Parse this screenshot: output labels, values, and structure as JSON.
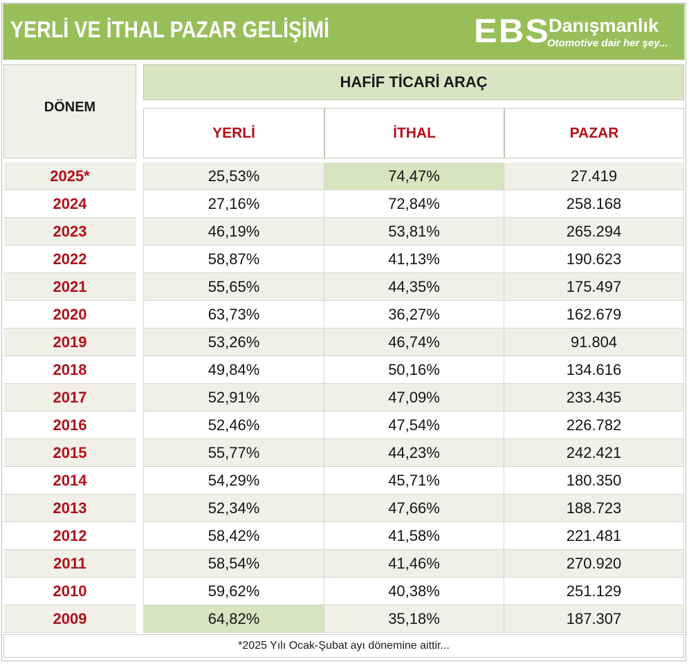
{
  "header": {
    "title": "YERLİ VE İTHAL PAZAR GELİŞİMİ",
    "logo_letters": "EBS",
    "logo_name": "Danışmanlık",
    "logo_tagline": "Otomotive dair her şey...",
    "brand_color": "#98be5a",
    "accent_color": "#b0101a"
  },
  "table": {
    "period_header": "DÖNEM",
    "group_header": "HAFİF TİCARİ ARAÇ",
    "columns": [
      "YERLİ",
      "İTHAL",
      "PAZAR"
    ],
    "rows": [
      {
        "period": "2025*",
        "yerli": "25,53%",
        "ithal": "74,47%",
        "pazar": "27.419"
      },
      {
        "period": "2024",
        "yerli": "27,16%",
        "ithal": "72,84%",
        "pazar": "258.168"
      },
      {
        "period": "2023",
        "yerli": "46,19%",
        "ithal": "53,81%",
        "pazar": "265.294"
      },
      {
        "period": "2022",
        "yerli": "58,87%",
        "ithal": "41,13%",
        "pazar": "190.623"
      },
      {
        "period": "2021",
        "yerli": "55,65%",
        "ithal": "44,35%",
        "pazar": "175.497"
      },
      {
        "period": "2020",
        "yerli": "63,73%",
        "ithal": "36,27%",
        "pazar": "162.679"
      },
      {
        "period": "2019",
        "yerli": "53,26%",
        "ithal": "46,74%",
        "pazar": "91.804"
      },
      {
        "period": "2018",
        "yerli": "49,84%",
        "ithal": "50,16%",
        "pazar": "134.616"
      },
      {
        "period": "2017",
        "yerli": "52,91%",
        "ithal": "47,09%",
        "pazar": "233.435"
      },
      {
        "period": "2016",
        "yerli": "52,46%",
        "ithal": "47,54%",
        "pazar": "226.782"
      },
      {
        "period": "2015",
        "yerli": "55,77%",
        "ithal": "44,23%",
        "pazar": "242.421"
      },
      {
        "period": "2014",
        "yerli": "54,29%",
        "ithal": "45,71%",
        "pazar": "180.350"
      },
      {
        "period": "2013",
        "yerli": "52,34%",
        "ithal": "47,66%",
        "pazar": "188.723"
      },
      {
        "period": "2012",
        "yerli": "58,42%",
        "ithal": "41,58%",
        "pazar": "221.481"
      },
      {
        "period": "2011",
        "yerli": "58,54%",
        "ithal": "41,46%",
        "pazar": "270.920"
      },
      {
        "period": "2010",
        "yerli": "59,62%",
        "ithal": "40,38%",
        "pazar": "251.129"
      },
      {
        "period": "2009",
        "yerli": "64,82%",
        "ithal": "35,18%",
        "pazar": "187.307"
      }
    ],
    "footnote": "*2025 Yılı Ocak-Şubat ayı dönemine aittir..."
  }
}
